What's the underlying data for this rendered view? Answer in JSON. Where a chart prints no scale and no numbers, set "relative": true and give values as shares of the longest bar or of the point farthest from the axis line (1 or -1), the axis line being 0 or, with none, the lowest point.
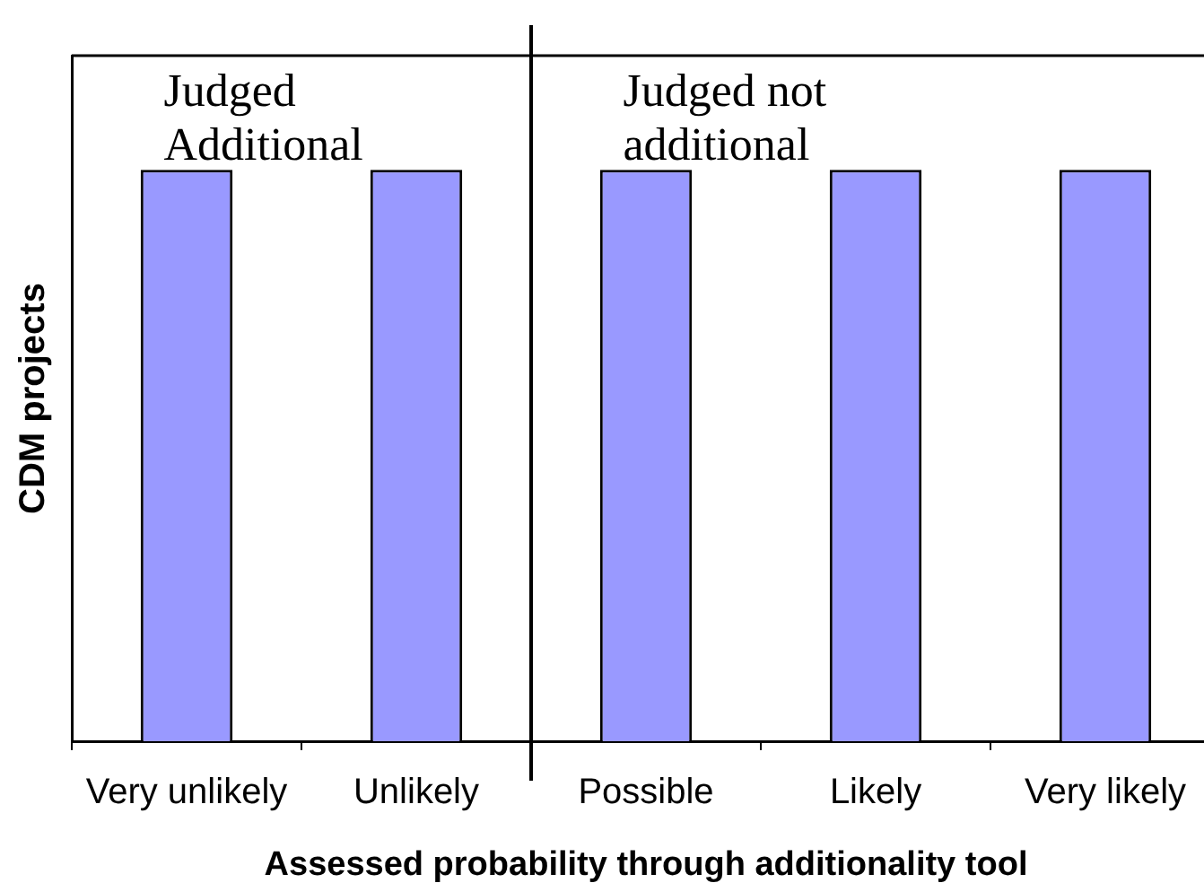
{
  "chart_data": {
    "type": "bar",
    "xlabel": "Assessed probability through additionality tool",
    "ylabel": "CDM projects",
    "categories": [
      "Very unlikely",
      "Unlikely",
      "Possible",
      "Likely",
      "Very likely"
    ],
    "values": [
      1,
      1,
      1,
      1,
      1
    ],
    "color": "#9999ff",
    "relative": true,
    "annotations": [
      "Judged Additional",
      "Judged not additional"
    ]
  }
}
